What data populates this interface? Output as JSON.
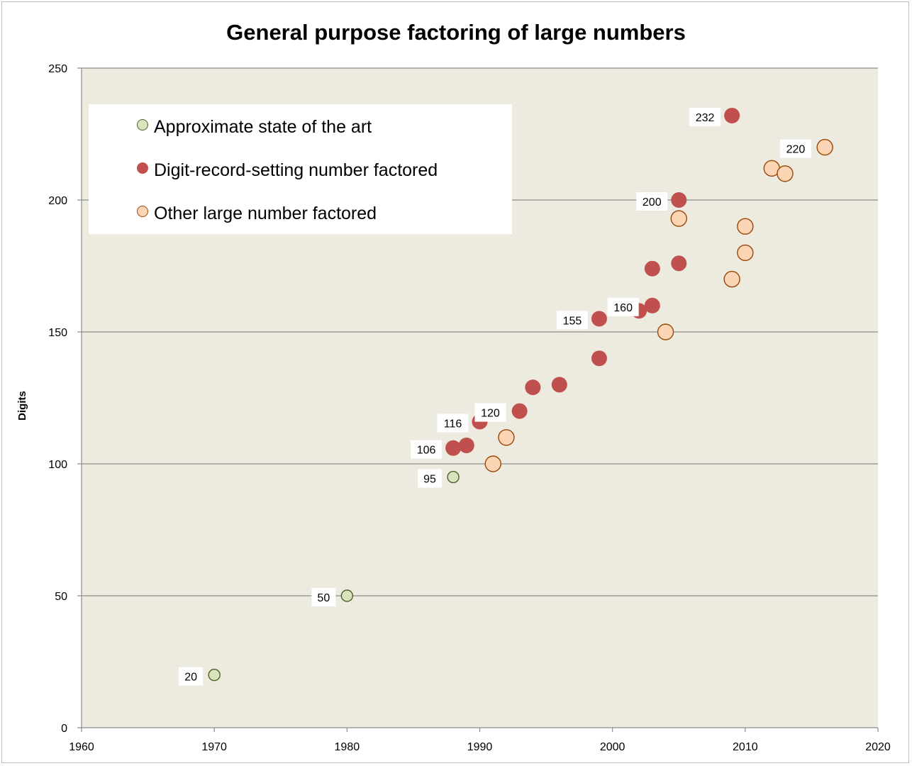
{
  "chart_data": {
    "type": "scatter",
    "title": "General purpose factoring of large numbers",
    "xlabel": "",
    "ylabel": "Digits",
    "xlim": [
      1960,
      2020
    ],
    "ylim": [
      0,
      250
    ],
    "x_ticks": [
      "1960",
      "1970",
      "1980",
      "1990",
      "2000",
      "2010",
      "2020"
    ],
    "y_ticks": [
      "0",
      "50",
      "100",
      "150",
      "200",
      "250"
    ],
    "grid": "horizontal",
    "legend_position": "top-left",
    "background": "#edeae0",
    "series": [
      {
        "name": "Approximate state of the art",
        "fill": "#d7e4bd",
        "stroke": "#4f6228",
        "points": [
          [
            1970,
            20
          ],
          [
            1980,
            50
          ],
          [
            1988,
            95
          ]
        ]
      },
      {
        "name": "Digit-record-setting number factored",
        "fill": "#c0504d",
        "stroke": "#c0504d",
        "points": [
          [
            1988,
            106
          ],
          [
            1989,
            107
          ],
          [
            1990,
            116
          ],
          [
            1993,
            120
          ],
          [
            1994,
            129
          ],
          [
            1996,
            130
          ],
          [
            1999,
            140
          ],
          [
            1999,
            155
          ],
          [
            2002,
            158
          ],
          [
            2003,
            160
          ],
          [
            2003,
            174
          ],
          [
            2005,
            176
          ],
          [
            2005,
            200
          ],
          [
            2009,
            232
          ]
        ]
      },
      {
        "name": "Other large number factored",
        "fill": "#fcd5b5",
        "stroke": "#984807",
        "points": [
          [
            1991,
            100
          ],
          [
            1992,
            110
          ],
          [
            2004,
            150
          ],
          [
            2005,
            193
          ],
          [
            2009,
            170
          ],
          [
            2010,
            180
          ],
          [
            2010,
            190
          ],
          [
            2012,
            212
          ],
          [
            2013,
            210
          ],
          [
            2016,
            220
          ]
        ]
      }
    ],
    "point_labels": [
      {
        "text": "20",
        "x": 1970,
        "y": 20,
        "side": "left"
      },
      {
        "text": "50",
        "x": 1980,
        "y": 50,
        "side": "left"
      },
      {
        "text": "95",
        "x": 1988,
        "y": 95,
        "side": "left"
      },
      {
        "text": "106",
        "x": 1988,
        "y": 106,
        "side": "left"
      },
      {
        "text": "116",
        "x": 1990,
        "y": 116,
        "side": "left"
      },
      {
        "text": "120",
        "x": 1990.8,
        "y": 120,
        "side": "center"
      },
      {
        "text": "155",
        "x": 1999,
        "y": 155,
        "side": "left"
      },
      {
        "text": "160",
        "x": 2000.8,
        "y": 160,
        "side": "center"
      },
      {
        "text": "200",
        "x": 2005,
        "y": 200,
        "side": "left"
      },
      {
        "text": "232",
        "x": 2009,
        "y": 232,
        "side": "left"
      },
      {
        "text": "220",
        "x": 2013.8,
        "y": 220,
        "side": "center"
      }
    ]
  }
}
